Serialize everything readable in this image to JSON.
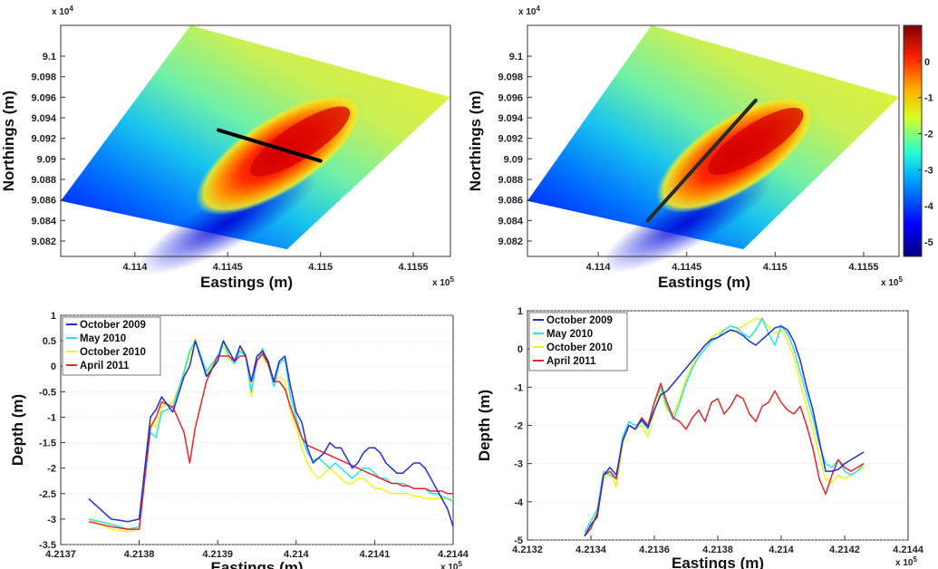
{
  "colors": {
    "october_2009": "#1f2fd6",
    "may_2010": "#2fe0e8",
    "october_2010": "#f2f21a",
    "april_2011": "#e3262b"
  },
  "chart_data": [
    {
      "id": "map-left",
      "type": "heatmap",
      "xlabel": "Eastings (m)",
      "ylabel": "Northings (m)",
      "x_exponent": "x 10^5",
      "y_exponent": "x 10^4",
      "xticks": [
        "4.114",
        "4.1145",
        "4.115",
        "4.1155"
      ],
      "yticks": [
        "9.1",
        "9.098",
        "9.096",
        "9.094",
        "9.092",
        "9.09",
        "9.088",
        "9.086",
        "9.084",
        "9.082"
      ],
      "xlim": [
        411360,
        411570
      ],
      "ylim": [
        90805,
        91030
      ],
      "transect": {
        "from": [
          411445,
          90928
        ],
        "to": [
          411500,
          90898
        ],
        "color": "#000000"
      }
    },
    {
      "id": "map-right",
      "type": "heatmap",
      "xlabel": "Eastings (m)",
      "ylabel": "Northings (m)",
      "x_exponent": "x 10^5",
      "y_exponent": "x 10^4",
      "xticks": [
        "4.114",
        "4.1145",
        "4.115",
        "4.1155"
      ],
      "yticks": [
        "9.1",
        "9.098",
        "9.096",
        "9.094",
        "9.092",
        "9.09",
        "9.088",
        "9.086",
        "9.084",
        "9.082"
      ],
      "xlim": [
        411360,
        411570
      ],
      "ylim": [
        90805,
        91030
      ],
      "transect": {
        "from": [
          411428,
          90840
        ],
        "to": [
          411489,
          90957
        ],
        "color": "#2a2a2a"
      },
      "colorbar": {
        "ticks": [
          "0",
          "-1",
          "-2",
          "-3",
          "-4",
          "-5"
        ],
        "range": [
          -5.4,
          1.0
        ]
      }
    },
    {
      "id": "profile-left",
      "type": "line",
      "xlabel": "Eastings (m)",
      "ylabel": "Depth (m)",
      "x_exponent": "x 10^5",
      "xticks": [
        "4.2137",
        "4.2138",
        "4.2139",
        "4.214",
        "4.2141",
        "4.2144"
      ],
      "yticks": [
        "1",
        "0.5",
        "0",
        "-0.5",
        "-1",
        "-1.5",
        "-2",
        "-2.5",
        "-3",
        "-3.5"
      ],
      "xlim": [
        421370,
        421440
      ],
      "ylim": [
        -3.5,
        1.0
      ],
      "legend_position": "top-left",
      "series": [
        {
          "name": "October 2009",
          "x": [
            421375,
            421379,
            421382,
            421384,
            421385,
            421386,
            421387,
            421388,
            421390,
            421392,
            421393,
            421394,
            421396,
            421398,
            421399,
            421400,
            421401,
            421402,
            421403,
            421404,
            421405,
            421406,
            421407,
            421408,
            421409,
            421410,
            421411,
            421412,
            421413,
            421414,
            421415,
            421416,
            421417,
            421418,
            421419,
            421420,
            421421,
            421422,
            421423,
            421424,
            421425,
            421426,
            421427,
            421428,
            421429,
            421430,
            421431,
            421432,
            421433,
            421434,
            421435,
            421436,
            421437,
            421438,
            421439,
            421440
          ],
          "y": [
            -2.6,
            -3.0,
            -3.05,
            -3.0,
            -2.0,
            -1.0,
            -0.85,
            -0.6,
            -0.9,
            -0.2,
            0.0,
            0.5,
            -0.2,
            0.1,
            0.5,
            0.3,
            0.1,
            0.4,
            0.2,
            -0.3,
            0.2,
            0.3,
            0.1,
            -0.3,
            0.1,
            0.2,
            -0.4,
            -0.9,
            -1.1,
            -1.6,
            -1.9,
            -1.8,
            -1.7,
            -1.5,
            -1.6,
            -1.6,
            -1.8,
            -2.0,
            -1.9,
            -1.7,
            -1.6,
            -1.6,
            -1.7,
            -1.9,
            -2.0,
            -2.1,
            -2.1,
            -2.0,
            -1.9,
            -1.9,
            -2.0,
            -2.2,
            -2.4,
            -2.6,
            -2.8,
            -3.15
          ]
        },
        {
          "name": "May 2010",
          "x": [
            421375,
            421379,
            421382,
            421384,
            421385,
            421386,
            421387,
            421388,
            421390,
            421392,
            421393,
            421394,
            421396,
            421398,
            421399,
            421400,
            421401,
            421402,
            421403,
            421404,
            421405,
            421406,
            421407,
            421408,
            421409,
            421410,
            421411,
            421412,
            421413,
            421414,
            421415,
            421416,
            421417,
            421418,
            421419,
            421420,
            421421,
            421422,
            421423,
            421424,
            421425,
            421426,
            421427,
            421428,
            421429,
            421430,
            421431,
            421432,
            421433,
            421434,
            421435,
            421436,
            421437,
            421438,
            421439,
            421440
          ],
          "y": [
            -3.0,
            -3.1,
            -3.2,
            -3.15,
            -2.2,
            -1.3,
            -1.4,
            -0.9,
            -0.8,
            -0.1,
            0.3,
            0.5,
            -0.1,
            0.2,
            0.5,
            0.2,
            0.05,
            0.3,
            0.2,
            -0.5,
            0.1,
            0.35,
            0.05,
            -0.4,
            0.05,
            0.15,
            -0.6,
            -1.0,
            -1.4,
            -1.7,
            -1.85,
            -1.8,
            -1.9,
            -2.0,
            -1.9,
            -2.0,
            -2.1,
            -2.2,
            -2.1,
            -2.0,
            -2.0,
            -2.1,
            -2.2,
            -2.2,
            -2.3,
            -2.3,
            -2.3,
            -2.35,
            -2.4,
            -2.4,
            -2.4,
            -2.5,
            -2.5,
            -2.55,
            -2.6,
            -2.65
          ]
        },
        {
          "name": "October 2010",
          "x": [
            421375,
            421379,
            421382,
            421384,
            421385,
            421386,
            421387,
            421388,
            421390,
            421392,
            421393,
            421394,
            421396,
            421398,
            421399,
            421400,
            421401,
            421402,
            421403,
            421404,
            421405,
            421406,
            421407,
            421408,
            421409,
            421410,
            421411,
            421412,
            421413,
            421414,
            421415,
            421416,
            421417,
            421418,
            421419,
            421420,
            421421,
            421422,
            421423,
            421424,
            421425,
            421426,
            421427,
            421428,
            421429,
            421430,
            421431,
            421432,
            421433,
            421434,
            421435,
            421436,
            421437,
            421438,
            421439,
            421440
          ],
          "y": [
            -3.0,
            -3.2,
            -3.25,
            -3.2,
            -2.1,
            -1.1,
            -1.2,
            -0.8,
            -0.7,
            -0.15,
            0.2,
            0.55,
            -0.15,
            0.2,
            0.4,
            0.15,
            0.05,
            0.35,
            0.25,
            -0.6,
            0.15,
            0.2,
            0.0,
            -0.3,
            -0.2,
            -0.3,
            -0.9,
            -1.2,
            -1.6,
            -1.9,
            -2.1,
            -2.2,
            -2.1,
            -2.0,
            -2.1,
            -2.2,
            -2.3,
            -2.3,
            -2.2,
            -2.2,
            -2.3,
            -2.4,
            -2.4,
            -2.45,
            -2.5,
            -2.5,
            -2.5,
            -2.5,
            -2.55,
            -2.55,
            -2.6,
            -2.6,
            -2.6,
            -2.6,
            -2.6,
            -2.6
          ]
        },
        {
          "name": "April 2011",
          "x": [
            421375,
            421379,
            421382,
            421384,
            421385,
            421386,
            421387,
            421388,
            421390,
            421392,
            421393,
            421394,
            421396,
            421398,
            421399,
            421400,
            421401,
            421402,
            421403,
            421404,
            421405,
            421406,
            421407,
            421408,
            421409,
            421410,
            421411,
            421412,
            421413,
            421414,
            421415,
            421416,
            421417,
            421418,
            421419,
            421420,
            421421,
            421422,
            421423,
            421424,
            421425,
            421426,
            421427,
            421428,
            421429,
            421430,
            421431,
            421432,
            421433,
            421434,
            421435,
            421436,
            421437,
            421438,
            421439,
            421440
          ],
          "y": [
            -3.05,
            -3.15,
            -3.2,
            -3.2,
            -2.2,
            -1.2,
            -1.0,
            -0.7,
            -0.8,
            -1.3,
            -1.9,
            -1.2,
            -0.3,
            0.2,
            0.2,
            0.2,
            0.1,
            0.2,
            0.2,
            -0.3,
            0.1,
            0.25,
            0.05,
            -0.3,
            -0.3,
            -0.45,
            -0.8,
            -1.1,
            -1.4,
            -1.55,
            -1.6,
            -1.65,
            -1.7,
            -1.75,
            -1.8,
            -1.85,
            -1.9,
            -1.95,
            -2.0,
            -2.05,
            -2.1,
            -2.15,
            -2.2,
            -2.25,
            -2.3,
            -2.3,
            -2.35,
            -2.35,
            -2.4,
            -2.4,
            -2.4,
            -2.45,
            -2.45,
            -2.45,
            -2.5,
            -2.5
          ]
        }
      ]
    },
    {
      "id": "profile-right",
      "type": "line",
      "xlabel": "Eastings (m)",
      "ylabel": "Depth (m)",
      "x_exponent": "x 10^5",
      "xticks": [
        "4.2132",
        "4.2134",
        "4.2136",
        "4.2138",
        "4.214",
        "4.2142",
        "4.2144"
      ],
      "yticks": [
        "1",
        "0",
        "-1",
        "-2",
        "-3",
        "-4",
        "-5"
      ],
      "xlim": [
        421320,
        421440
      ],
      "ylim": [
        -5.0,
        1.0
      ],
      "legend_position": "top-left",
      "series": [
        {
          "name": "October 2009",
          "x": [
            421338,
            421340,
            421342,
            421344,
            421346,
            421348,
            421350,
            421352,
            421354,
            421356,
            421358,
            421360,
            421362,
            421364,
            421366,
            421368,
            421370,
            421372,
            421374,
            421376,
            421378,
            421380,
            421382,
            421384,
            421386,
            421388,
            421390,
            421392,
            421394,
            421396,
            421398,
            421400,
            421402,
            421404,
            421406,
            421408,
            421410,
            421412,
            421414,
            421416,
            421418,
            421420,
            421422,
            421424,
            421426
          ],
          "y": [
            -4.9,
            -4.6,
            -4.4,
            -3.3,
            -3.1,
            -3.3,
            -2.4,
            -2.0,
            -2.1,
            -1.85,
            -2.05,
            -1.6,
            -1.2,
            -1.1,
            -0.9,
            -0.7,
            -0.5,
            -0.3,
            -0.1,
            0.1,
            0.25,
            0.3,
            0.4,
            0.5,
            0.45,
            0.35,
            0.2,
            0.1,
            0.25,
            0.4,
            0.55,
            0.6,
            0.5,
            0.2,
            -0.3,
            -1.0,
            -1.6,
            -2.4,
            -3.2,
            -3.2,
            -3.15,
            -3.0,
            -2.9,
            -2.8,
            -2.7
          ]
        },
        {
          "name": "May 2010",
          "x": [
            421338,
            421340,
            421342,
            421344,
            421346,
            421348,
            421350,
            421352,
            421354,
            421356,
            421358,
            421360,
            421362,
            421364,
            421366,
            421368,
            421370,
            421372,
            421374,
            421376,
            421378,
            421380,
            421382,
            421384,
            421386,
            421388,
            421390,
            421392,
            421394,
            421396,
            421398,
            421400,
            421402,
            421404,
            421406,
            421408,
            421410,
            421412,
            421414,
            421416,
            421418,
            421420,
            421422,
            421424,
            421426
          ],
          "y": [
            -4.8,
            -4.5,
            -4.2,
            -3.2,
            -3.3,
            -3.4,
            -2.3,
            -1.9,
            -2.0,
            -1.9,
            -2.1,
            -1.4,
            -1.0,
            -1.5,
            -1.85,
            -1.4,
            -0.9,
            -0.5,
            -0.2,
            0.0,
            0.2,
            0.3,
            0.5,
            0.6,
            0.55,
            0.4,
            0.3,
            0.5,
            0.8,
            0.4,
            0.1,
            0.6,
            0.4,
            0.0,
            -0.6,
            -1.2,
            -1.8,
            -2.5,
            -3.0,
            -3.1,
            -2.9,
            -3.2,
            -3.3,
            -3.2,
            -3.0
          ]
        },
        {
          "name": "October 2010",
          "x": [
            421338,
            421340,
            421342,
            421344,
            421346,
            421348,
            421350,
            421352,
            421354,
            421356,
            421358,
            421360,
            421362,
            421364,
            421366,
            421368,
            421370,
            421372,
            421374,
            421376,
            421378,
            421380,
            421382,
            421384,
            421386,
            421388,
            421390,
            421392,
            421394,
            421396,
            421398,
            421400,
            421402,
            421404,
            421406,
            421408,
            421410,
            421412,
            421414,
            421416,
            421418,
            421420,
            421422,
            421424,
            421426
          ],
          "y": [
            -4.85,
            -4.6,
            -4.3,
            -3.4,
            -3.2,
            -3.6,
            -2.5,
            -2.0,
            -2.1,
            -2.0,
            -2.3,
            -1.6,
            -1.1,
            -1.6,
            -1.7,
            -1.3,
            -0.8,
            -0.4,
            -0.1,
            0.1,
            0.3,
            0.4,
            0.5,
            0.45,
            0.5,
            0.6,
            0.7,
            0.8,
            0.75,
            0.6,
            0.4,
            0.5,
            0.2,
            -0.2,
            -0.9,
            -1.5,
            -2.1,
            -2.8,
            -3.4,
            -3.5,
            -3.3,
            -3.4,
            -3.3,
            -3.2,
            -3.1
          ]
        },
        {
          "name": "April 2011",
          "x": [
            421338,
            421340,
            421342,
            421344,
            421346,
            421348,
            421350,
            421352,
            421354,
            421356,
            421358,
            421360,
            421362,
            421364,
            421366,
            421368,
            421370,
            421372,
            421374,
            421376,
            421378,
            421380,
            421382,
            421384,
            421386,
            421388,
            421390,
            421392,
            421394,
            421396,
            421398,
            421400,
            421402,
            421404,
            421406,
            421408,
            421410,
            421412,
            421414,
            421416,
            421418,
            421420,
            421422,
            421424,
            421426
          ],
          "y": [
            -4.9,
            -4.7,
            -4.3,
            -3.3,
            -3.2,
            -3.4,
            -2.4,
            -2.0,
            -2.1,
            -1.8,
            -2.0,
            -1.4,
            -0.9,
            -1.4,
            -1.8,
            -1.9,
            -2.1,
            -1.8,
            -1.6,
            -1.9,
            -1.4,
            -1.3,
            -1.7,
            -1.5,
            -1.2,
            -1.3,
            -1.7,
            -1.9,
            -1.5,
            -1.4,
            -1.1,
            -1.4,
            -1.6,
            -1.7,
            -1.5,
            -2.0,
            -2.6,
            -3.4,
            -3.8,
            -3.3,
            -2.9,
            -3.1,
            -3.2,
            -3.1,
            -3.0
          ]
        }
      ]
    }
  ]
}
